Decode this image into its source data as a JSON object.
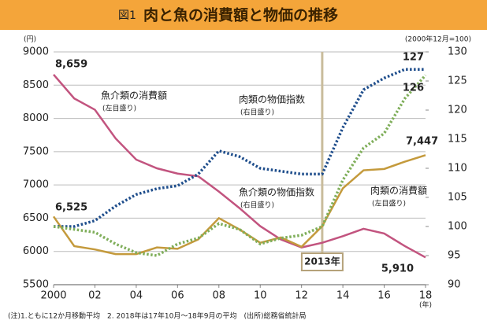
{
  "chart_data": {
    "type": "line",
    "figure_label": "図1",
    "title": "肉と魚の消費額と物価の推移",
    "ylabel": "(円)",
    "y2label": "(2000年12月=100)",
    "xlabel": "(年)",
    "note": "(注)1.ともに12か月移動平均　2. 2018年は17年10月～18年9月の平均　(出所)総務省統計局",
    "x": [
      2000,
      2001,
      2002,
      2003,
      2004,
      2005,
      2006,
      2007,
      2008,
      2009,
      2010,
      2011,
      2012,
      2013,
      2014,
      2015,
      2016,
      2017,
      2018
    ],
    "xlim": [
      2000,
      2018
    ],
    "xticks": [
      2000,
      {
        "value": 2002,
        "label": "02"
      },
      {
        "value": 2004,
        "label": "04"
      },
      {
        "value": 2006,
        "label": "06"
      },
      {
        "value": 2008,
        "label": "08"
      },
      {
        "value": 2010,
        "label": "10"
      },
      {
        "value": 2012,
        "label": "12"
      },
      {
        "value": 2014,
        "label": "14"
      },
      {
        "value": 2016,
        "label": "16"
      },
      {
        "value": 2018,
        "label": "18"
      }
    ],
    "ylim": [
      5500,
      9000
    ],
    "yticks": [
      5500,
      6000,
      6500,
      7000,
      7500,
      8000,
      8500,
      9000
    ],
    "y2lim": [
      90,
      130
    ],
    "y2ticks": [
      90,
      95,
      100,
      105,
      110,
      115,
      120,
      125,
      130
    ],
    "grid": true,
    "vline": {
      "x": 2013,
      "label": "2013年"
    },
    "series": [
      {
        "name": "魚介類の消費額",
        "axis_note": "(左目盛り)",
        "color": "#c2547f",
        "dashed": false,
        "values": [
          8659,
          8300,
          8130,
          7700,
          7380,
          7250,
          7170,
          7130,
          6900,
          6650,
          6380,
          6180,
          6060,
          6130,
          6230,
          6340,
          6270,
          6080,
          5910
        ],
        "value_labels": [
          "8,659",
          null,
          null,
          null,
          null,
          null,
          null,
          null,
          null,
          null,
          null,
          null,
          null,
          null,
          null,
          null,
          null,
          null,
          "5,910"
        ]
      },
      {
        "name": "肉類の消費額",
        "axis_note": "(左目盛り)",
        "color": "#c49a3c",
        "dashed": false,
        "values": [
          6525,
          6080,
          6030,
          5960,
          5960,
          6060,
          6040,
          6180,
          6500,
          6330,
          6130,
          6210,
          6070,
          6380,
          6950,
          7220,
          7240,
          7350,
          7447
        ],
        "value_labels": [
          "6,525",
          null,
          null,
          null,
          null,
          null,
          null,
          null,
          null,
          null,
          null,
          null,
          null,
          null,
          null,
          null,
          null,
          null,
          "7,447"
        ]
      },
      {
        "name": "肉類の物価指数",
        "axis_note": "(右目盛り)",
        "color": "#1f4e8c",
        "dashed": true,
        "axis": "y2",
        "values": [
          100,
          100,
          101,
          103.5,
          105.5,
          106.5,
          107,
          109,
          113,
          112,
          110,
          109.5,
          109,
          109,
          117,
          123.5,
          125.5,
          127,
          127
        ]
      },
      {
        "name": "魚介類の物価指数",
        "axis_note": "(右目盛り)",
        "color": "#7fae5a",
        "dashed": true,
        "axis": "y2",
        "values": [
          100,
          99.5,
          99,
          97,
          95.5,
          95,
          97,
          98,
          100.5,
          99.5,
          97,
          98,
          98.5,
          100,
          108,
          113.5,
          116,
          122,
          126
        ]
      }
    ]
  }
}
